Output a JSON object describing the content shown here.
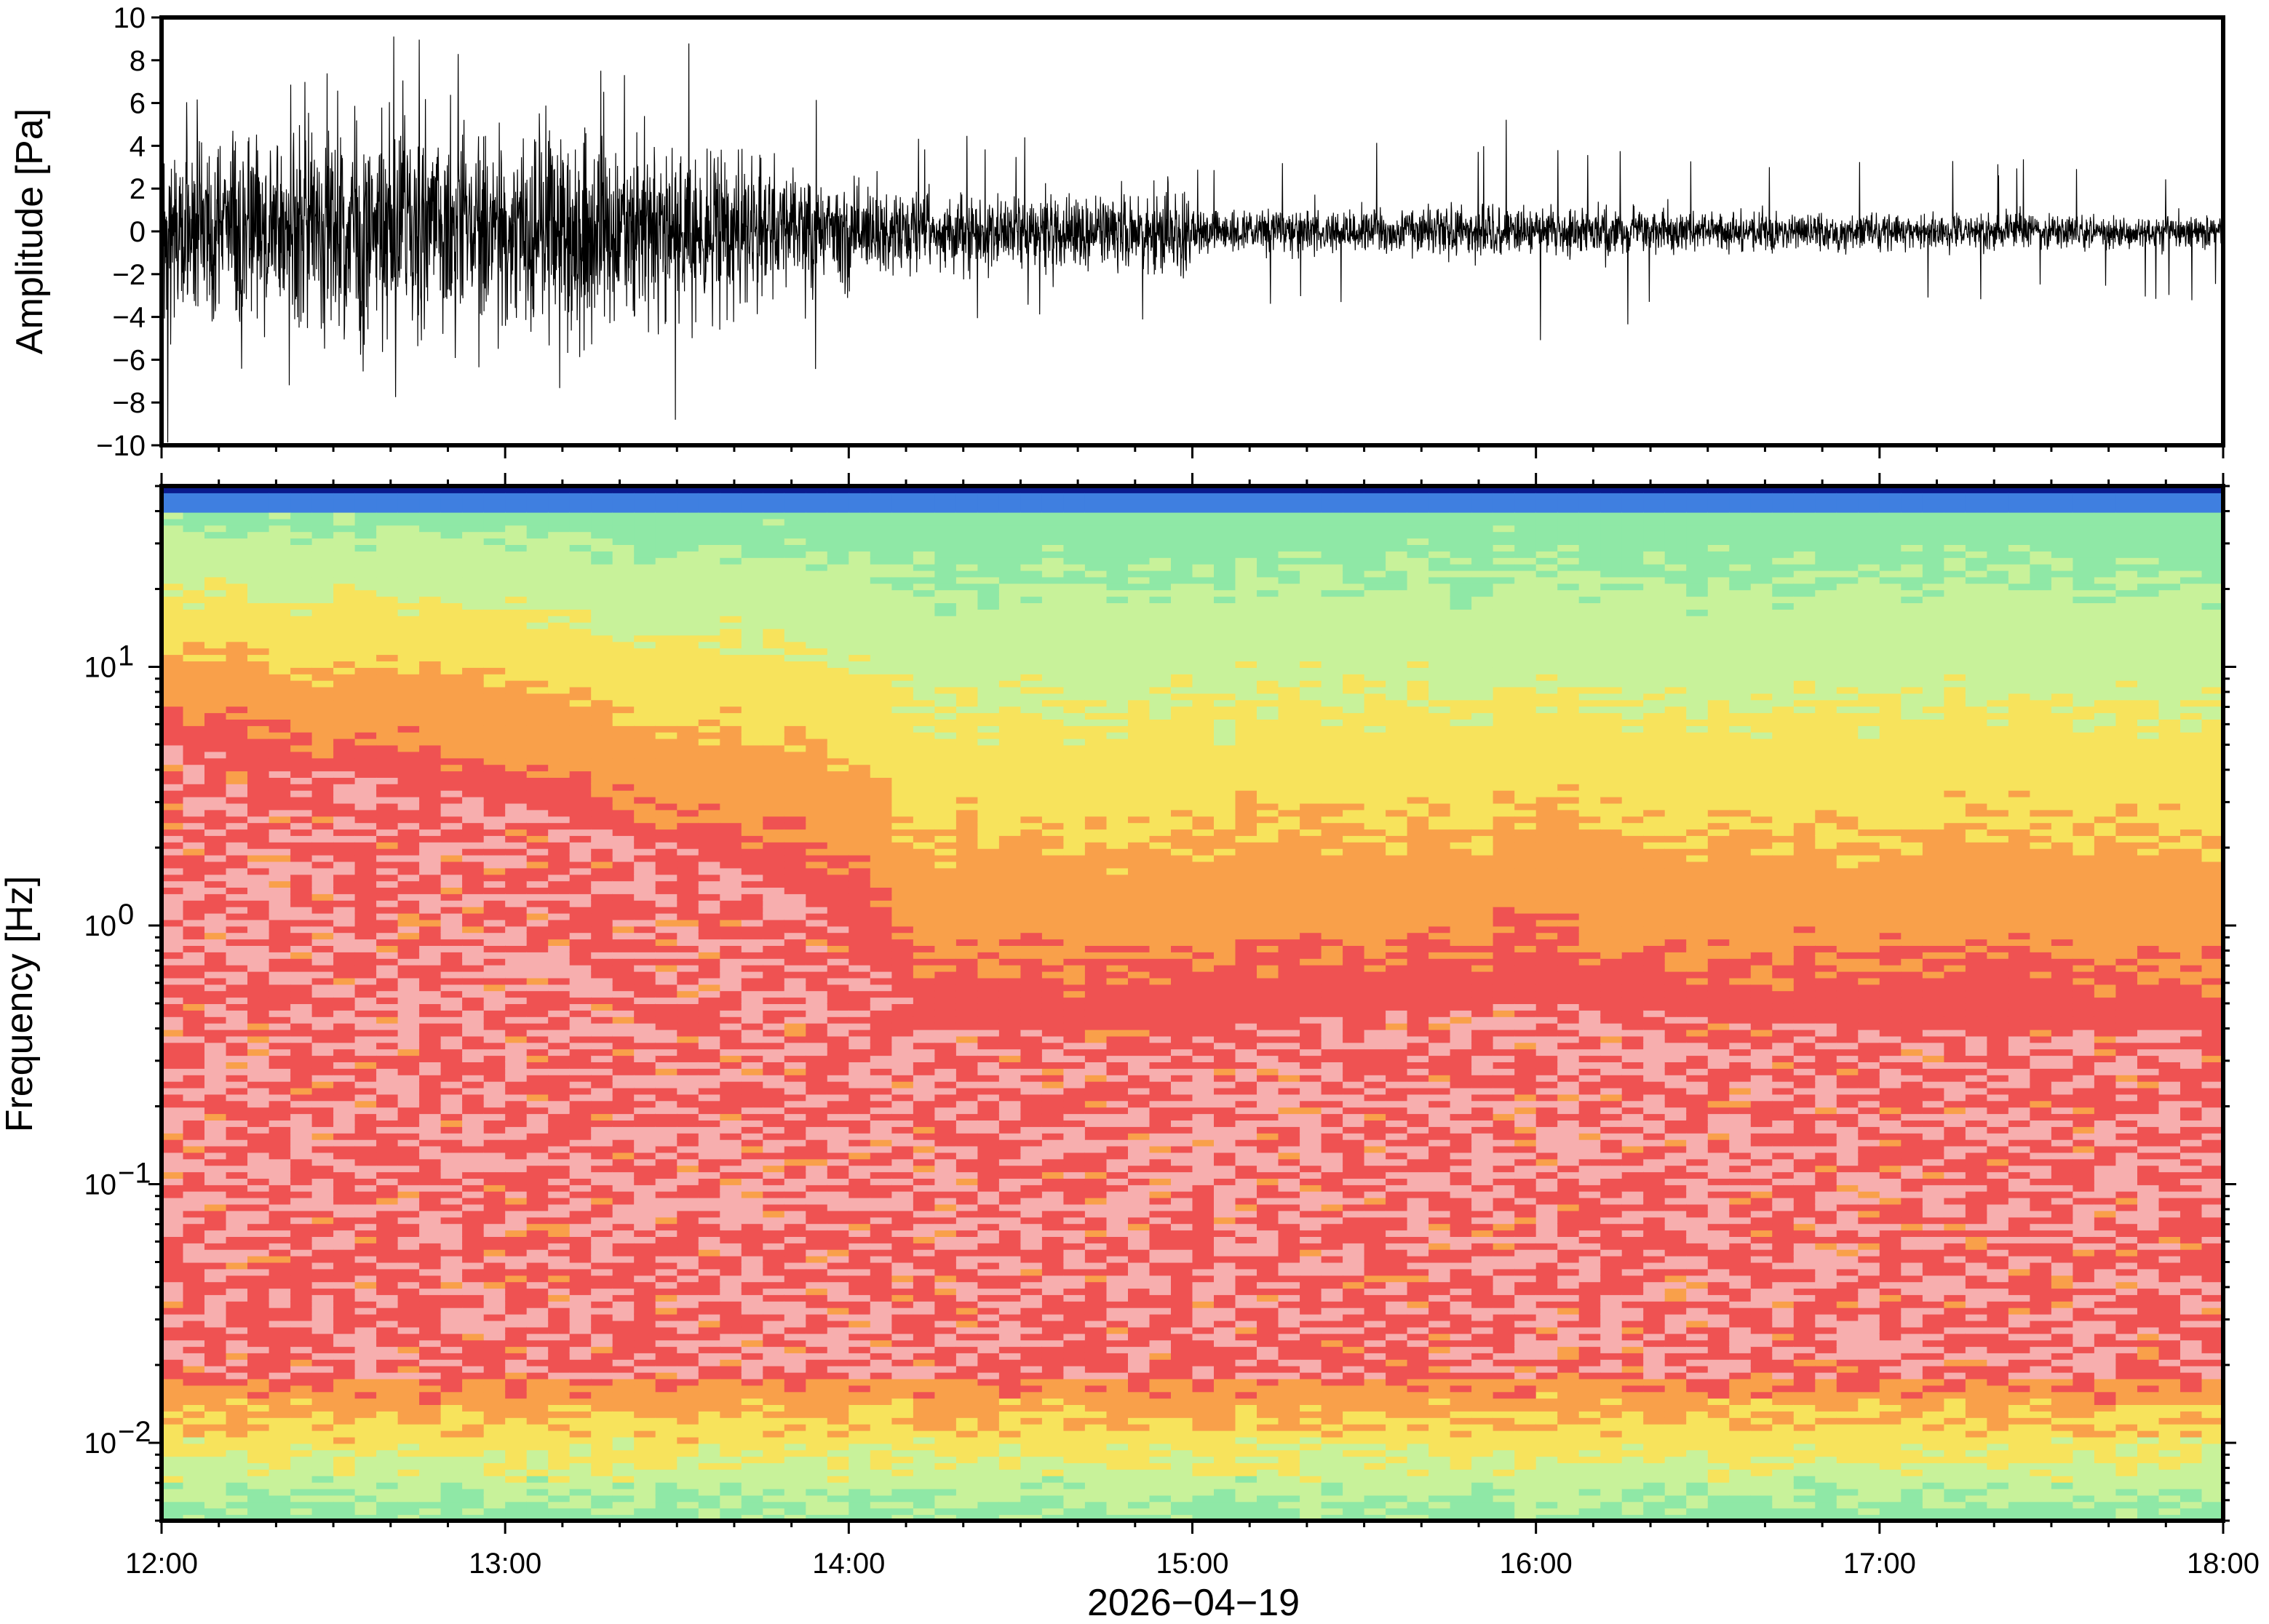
{
  "chart_data": [
    {
      "type": "line",
      "panel": "waveform",
      "ylabel": "Amplitude [Pa]",
      "ylim": [
        -10,
        10
      ],
      "yticks": [
        -10,
        -8,
        -6,
        -4,
        -2,
        0,
        2,
        4,
        6,
        8,
        10
      ],
      "ytick_labels": [
        "−10",
        "−8",
        "−6",
        "−4",
        "−2",
        "0",
        "2",
        "4",
        "6",
        "8",
        "10"
      ],
      "xlim": [
        "12:00",
        "18:00"
      ],
      "line_color": "#000000",
      "envelope": {
        "x_hours": [
          12.0,
          12.25,
          12.5,
          12.75,
          13.0,
          13.25,
          13.5,
          13.75,
          14.0,
          14.1,
          14.25,
          14.5,
          14.75,
          14.99,
          15.0,
          15.5,
          16.0,
          16.5,
          17.0,
          17.5,
          18.0
        ],
        "typical_amplitude_pa": [
          5.5,
          6.5,
          6.5,
          6.3,
          6.0,
          5.6,
          5.0,
          4.0,
          3.0,
          2.6,
          2.2,
          2.0,
          2.3,
          2.5,
          1.3,
          1.4,
          1.5,
          1.2,
          1.0,
          1.0,
          1.0
        ],
        "peak_amplitude_pa": [
          10,
          10,
          10,
          10,
          10,
          10,
          9.2,
          8.0,
          7.0,
          6.5,
          5.0,
          4.6,
          4.8,
          5.0,
          3.0,
          4.5,
          5.5,
          4.0,
          4.0,
          3.5,
          3.2
        ]
      }
    },
    {
      "type": "heatmap",
      "panel": "spectrogram",
      "ylabel": "Frequency [Hz]",
      "xlabel": "2026−04−19",
      "yscale": "log",
      "ylim": [
        0.005,
        50
      ],
      "yticks": [
        0.01,
        0.1,
        1,
        10
      ],
      "ytick_labels": [
        {
          "base": "10",
          "exp": "−2"
        },
        {
          "base": "10",
          "exp": "−1"
        },
        {
          "base": "10",
          "exp": "0"
        },
        {
          "base": "10",
          "exp": "1"
        }
      ],
      "xticks": [
        "12:00",
        "13:00",
        "14:00",
        "15:00",
        "16:00",
        "17:00",
        "18:00"
      ],
      "xlim": [
        "12:00",
        "18:00"
      ],
      "colormap": [
        "#8fe8a6",
        "#c8f29a",
        "#f7e35c",
        "#f9a04a",
        "#ef5252",
        "#f7aeae",
        "#0a1a8c"
      ],
      "dominant_structure": {
        "time_columns_hours": [
          12.0,
          13.0,
          14.0,
          14.2,
          15.0,
          16.0,
          17.0,
          18.0
        ],
        "red_yellow_boundary_hz": [
          5.0,
          3.0,
          1.0,
          0.4,
          0.4,
          0.5,
          0.4,
          0.4
        ]
      }
    }
  ]
}
